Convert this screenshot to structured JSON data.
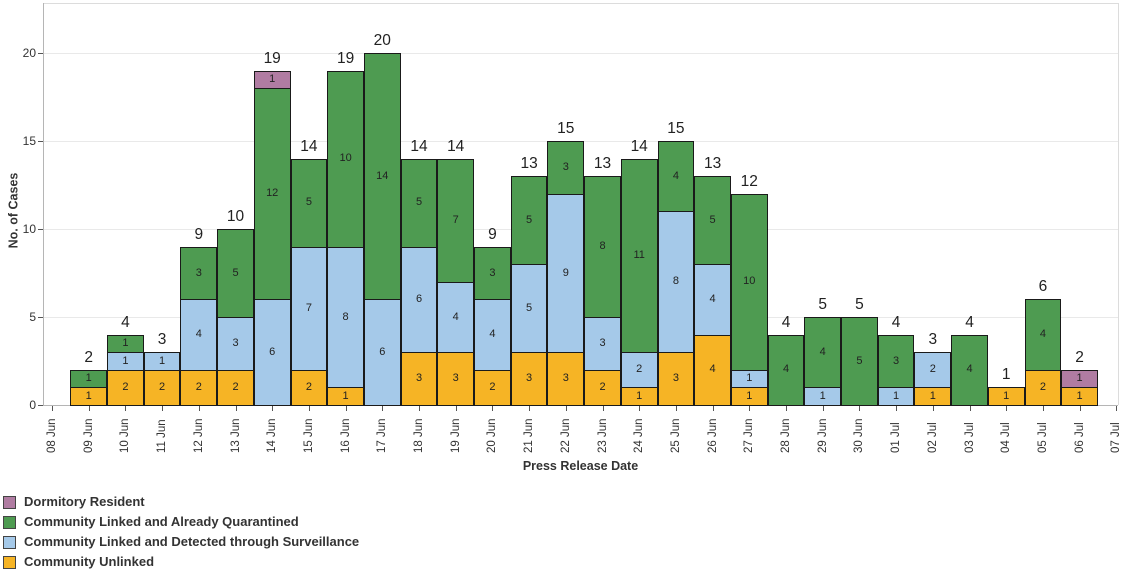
{
  "chart_data": {
    "type": "bar",
    "stacked": true,
    "title": "",
    "xlabel": "Press Release Date",
    "ylabel": "No. of Cases",
    "ylim": [
      0,
      20
    ],
    "yticks": [
      0,
      5,
      10,
      15,
      20
    ],
    "grid": "horizontal",
    "legend_position": "bottom-left",
    "axis_dates": [
      "08 Jun",
      "09 Jun",
      "10 Jun",
      "11 Jun",
      "12 Jun",
      "13 Jun",
      "14 Jun",
      "15 Jun",
      "16 Jun",
      "17 Jun",
      "18 Jun",
      "19 Jun",
      "20 Jun",
      "21 Jun",
      "22 Jun",
      "23 Jun",
      "24 Jun",
      "25 Jun",
      "26 Jun",
      "27 Jun",
      "28 Jun",
      "29 Jun",
      "30 Jun",
      "01 Jul",
      "02 Jul",
      "03 Jul",
      "04 Jul",
      "05 Jul",
      "06 Jul",
      "07 Jul"
    ],
    "categories": [
      "09 Jun",
      "10 Jun",
      "11 Jun",
      "12 Jun",
      "13 Jun",
      "14 Jun",
      "15 Jun",
      "16 Jun",
      "17 Jun",
      "18 Jun",
      "19 Jun",
      "20 Jun",
      "21 Jun",
      "22 Jun",
      "23 Jun",
      "24 Jun",
      "25 Jun",
      "26 Jun",
      "27 Jun",
      "28 Jun",
      "29 Jun",
      "30 Jun",
      "01 Jul",
      "02 Jul",
      "03 Jul",
      "04 Jul",
      "05 Jul",
      "06 Jul"
    ],
    "totals": [
      2,
      4,
      3,
      9,
      10,
      19,
      14,
      19,
      20,
      14,
      14,
      9,
      13,
      15,
      13,
      14,
      15,
      13,
      12,
      4,
      5,
      5,
      4,
      3,
      4,
      1,
      6,
      2
    ],
    "series": [
      {
        "name": "Community Unlinked",
        "color": "#F6B425",
        "values": [
          1,
          2,
          2,
          2,
          2,
          0,
          2,
          1,
          0,
          3,
          3,
          2,
          3,
          3,
          2,
          1,
          3,
          4,
          1,
          0,
          0,
          0,
          0,
          1,
          0,
          1,
          2,
          1
        ]
      },
      {
        "name": "Community Linked and Detected through Surveillance",
        "color": "#A5C9E9",
        "values": [
          0,
          1,
          1,
          4,
          3,
          6,
          7,
          8,
          6,
          6,
          4,
          4,
          5,
          9,
          3,
          2,
          8,
          4,
          1,
          0,
          1,
          0,
          1,
          2,
          0,
          0,
          0,
          0
        ]
      },
      {
        "name": "Community Linked and Already Quarantined",
        "color": "#4E9B51",
        "values": [
          1,
          1,
          0,
          3,
          5,
          12,
          5,
          10,
          14,
          5,
          7,
          3,
          5,
          3,
          8,
          11,
          4,
          5,
          10,
          4,
          4,
          5,
          3,
          0,
          4,
          0,
          4,
          0
        ]
      },
      {
        "name": "Dormitory Resident",
        "color": "#B07CA2",
        "values": [
          0,
          0,
          0,
          0,
          0,
          1,
          0,
          0,
          0,
          0,
          0,
          0,
          0,
          0,
          0,
          0,
          0,
          0,
          0,
          0,
          0,
          0,
          0,
          0,
          0,
          0,
          0,
          1
        ]
      }
    ],
    "legend": [
      {
        "label": "Dormitory Resident",
        "color": "#B07CA2"
      },
      {
        "label": "Community Linked and Already Quarantined",
        "color": "#4E9B51"
      },
      {
        "label": "Community Linked and Detected through Surveillance",
        "color": "#A5C9E9"
      },
      {
        "label": "Community Unlinked",
        "color": "#F6B425"
      }
    ]
  }
}
